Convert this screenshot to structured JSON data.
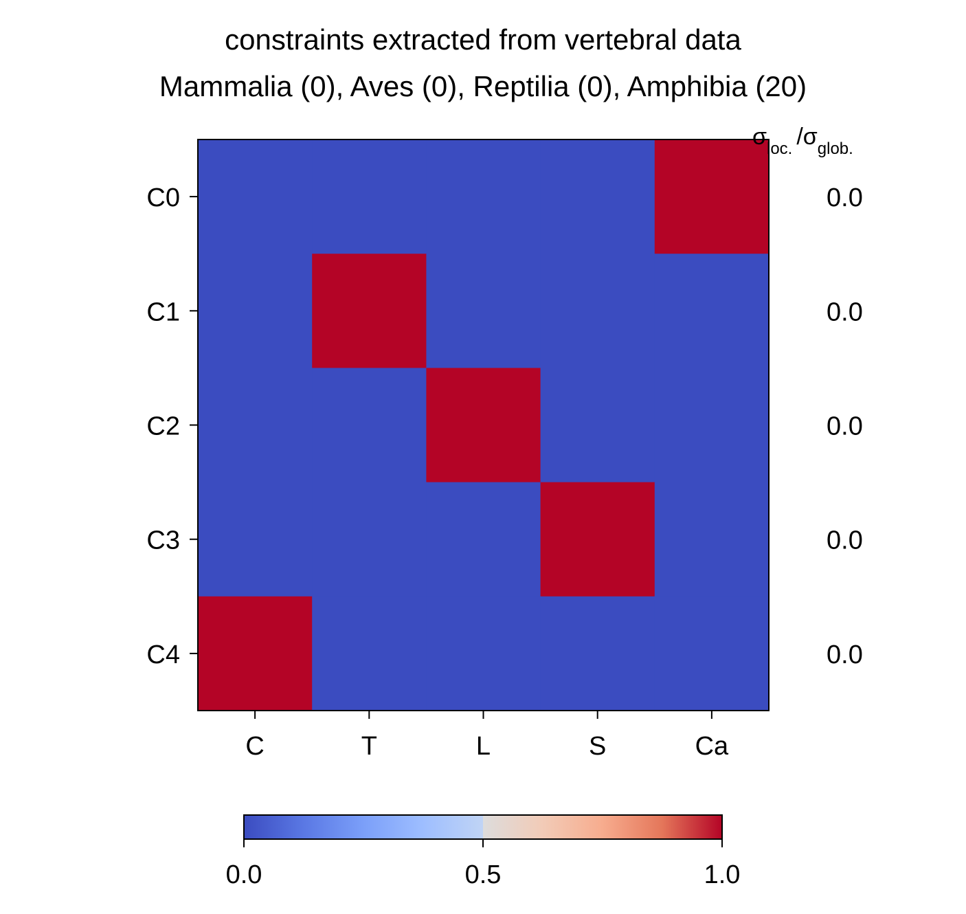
{
  "chart_data": {
    "type": "heatmap",
    "title_lines": [
      "constraints extracted from vertebral data",
      "Mammalia (0), Aves (0), Reptilia (0), Amphibia (20)"
    ],
    "rows": [
      "C0",
      "C1",
      "C2",
      "C3",
      "C4"
    ],
    "columns": [
      "C",
      "T",
      "L",
      "S",
      "Ca"
    ],
    "values": [
      [
        0,
        0,
        0,
        0,
        1
      ],
      [
        0,
        1,
        0,
        0,
        0
      ],
      [
        0,
        0,
        1,
        0,
        0
      ],
      [
        0,
        0,
        0,
        1,
        0
      ],
      [
        1,
        0,
        0,
        0,
        0
      ]
    ],
    "side_label": {
      "sigma": "σ",
      "sub1": "loc.",
      "slash": "/",
      "sub2": "glob."
    },
    "side_values": [
      "0.0",
      "0.0",
      "0.0",
      "0.0",
      "0.0"
    ],
    "colorbar": {
      "colormap": "coolwarm",
      "range": [
        0,
        1
      ],
      "ticks": [
        0.0,
        0.5,
        1.0
      ],
      "tick_labels": [
        "0.0",
        "0.5",
        "1.0"
      ],
      "orientation": "horizontal",
      "position": "bottom"
    },
    "colors": {
      "low": "#3b4cc0",
      "mid": "#dddcdc",
      "high": "#b40426"
    }
  }
}
